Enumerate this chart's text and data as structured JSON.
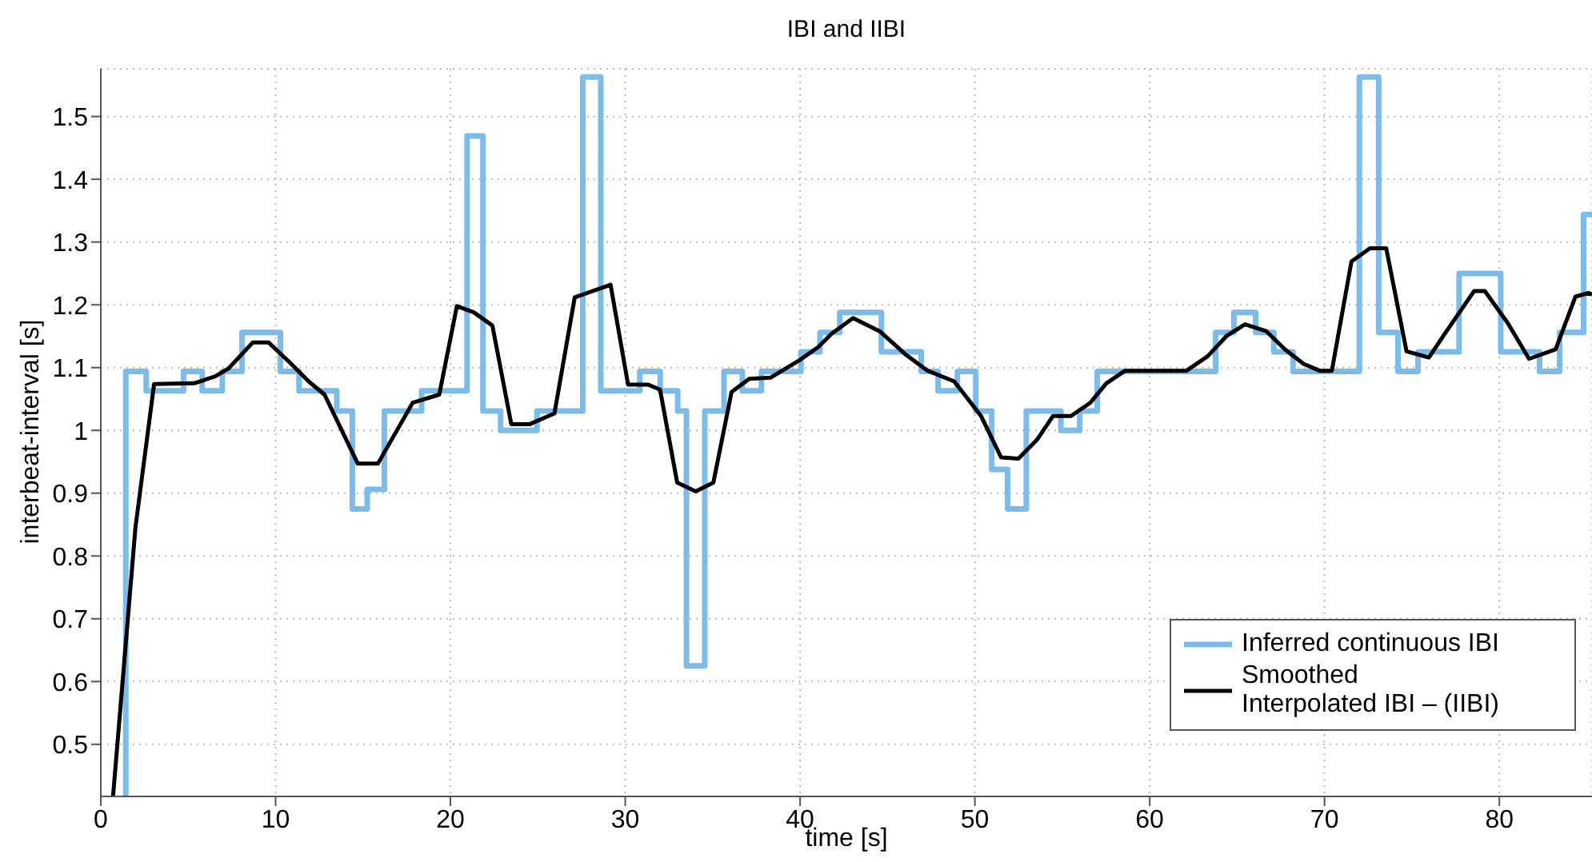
{
  "chart_data": {
    "type": "line",
    "title": "IBI and IIBI",
    "xlabel": "time [s]",
    "ylabel": "interbeat-interval [s]",
    "xlim": [
      0,
      85.3
    ],
    "xticks": [
      0,
      10,
      20,
      30,
      40,
      50,
      60,
      70,
      80
    ],
    "ylim": [
      0.417,
      1.576
    ],
    "yticks": [
      0.5,
      0.6,
      0.7,
      0.8,
      0.9,
      1,
      1.1,
      1.2,
      1.3,
      1.4,
      1.5
    ],
    "grid": true,
    "legend": "bottom right",
    "marker": "none",
    "line_style": "solid",
    "series": [
      {
        "name": "Inferred continuous IBI",
        "type": "step",
        "color": "#7dbbe9",
        "x": [
          1.43,
          1.43,
          2.6,
          4.73,
          5.8,
          6.95,
          8.08,
          10.27,
          11.34,
          13.5,
          14.39,
          15.24,
          16.22,
          18.35,
          20.95,
          21.86,
          22.87,
          24.95,
          27.57,
          28.6,
          30.83,
          32.0,
          33.0,
          33.5,
          34.55,
          35.65,
          36.7,
          37.79,
          40.05,
          41.14,
          42.27,
          44.65,
          46.93,
          47.9,
          49.0,
          50.05,
          50.96,
          51.87,
          52.94,
          54.92,
          56.0,
          57.0,
          63.77,
          64.82,
          66.06,
          67.1,
          68.2,
          71.99,
          73.1,
          74.2,
          75.35,
          77.7,
          80.08,
          82.3,
          83.45,
          84.82,
          85.3
        ],
        "values": [
          0.417,
          1.094,
          1.063,
          1.094,
          1.063,
          1.094,
          1.156,
          1.094,
          1.063,
          1.031,
          0.875,
          0.906,
          1.031,
          1.063,
          1.469,
          1.031,
          1.0,
          1.031,
          1.563,
          1.063,
          1.094,
          1.063,
          1.031,
          0.625,
          1.031,
          1.094,
          1.063,
          1.094,
          1.125,
          1.156,
          1.188,
          1.125,
          1.094,
          1.063,
          1.094,
          1.031,
          0.938,
          0.875,
          1.031,
          1.0,
          1.031,
          1.094,
          1.156,
          1.188,
          1.156,
          1.125,
          1.094,
          1.563,
          1.156,
          1.094,
          1.125,
          1.25,
          1.125,
          1.094,
          1.156,
          1.344,
          1.344
        ]
      },
      {
        "name": "Smoothed\nInterpolated IBI – (IIBI)",
        "color": "#000000",
        "x": [
          0.7,
          1.98,
          3.05,
          5.34,
          6.55,
          7.32,
          8.69,
          9.6,
          10.82,
          11.89,
          12.8,
          14.7,
          15.85,
          17.84,
          19.36,
          20.37,
          21.34,
          22.4,
          23.48,
          24.54,
          25.95,
          27.11,
          29.16,
          30.16,
          31.29,
          31.99,
          32.97,
          34.03,
          35.04,
          36.08,
          37.09,
          38.3,
          39.98,
          41.05,
          41.81,
          43.03,
          44.55,
          46.08,
          47.3,
          48.82,
          50.35,
          51.5,
          52.49,
          53.55,
          54.47,
          55.5,
          56.6,
          57.52,
          58.59,
          62.1,
          63.31,
          64.38,
          65.45,
          66.67,
          67.74,
          68.8,
          69.72,
          70.42,
          71.54,
          72.6,
          73.53,
          74.69,
          75.97,
          76.88,
          78.56,
          79.17,
          80.48,
          81.7,
          83.22,
          84.35,
          85.1,
          85.3
        ],
        "values": [
          0.417,
          0.845,
          1.074,
          1.075,
          1.086,
          1.099,
          1.14,
          1.14,
          1.108,
          1.078,
          1.057,
          0.947,
          0.947,
          1.044,
          1.057,
          1.198,
          1.188,
          1.167,
          1.01,
          1.01,
          1.027,
          1.212,
          1.232,
          1.073,
          1.073,
          1.065,
          0.917,
          0.903,
          0.917,
          1.061,
          1.082,
          1.084,
          1.112,
          1.133,
          1.154,
          1.179,
          1.158,
          1.12,
          1.095,
          1.078,
          1.023,
          0.957,
          0.955,
          0.985,
          1.023,
          1.023,
          1.044,
          1.075,
          1.095,
          1.095,
          1.118,
          1.15,
          1.169,
          1.158,
          1.129,
          1.106,
          1.095,
          1.095,
          1.269,
          1.29,
          1.29,
          1.126,
          1.116,
          1.154,
          1.222,
          1.222,
          1.171,
          1.114,
          1.129,
          1.213,
          1.219,
          1.216
        ]
      }
    ]
  }
}
